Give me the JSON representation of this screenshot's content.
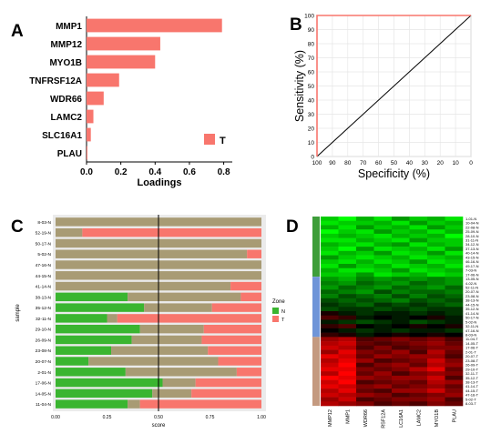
{
  "panels": {
    "A": "A",
    "B": "B",
    "C": "C",
    "D": "D"
  },
  "chart_data": [
    {
      "panel": "A",
      "type": "bar",
      "orientation": "horizontal",
      "categories": [
        "MMP1",
        "MMP12",
        "MYO1B",
        "TNFRSF12A",
        "WDR66",
        "LAMC2",
        "SLC16A1",
        "PLAU"
      ],
      "series": [
        {
          "name": "T",
          "values": [
            0.79,
            0.43,
            0.4,
            0.19,
            0.1,
            0.04,
            0.025,
            0.005
          ],
          "color": "#f8766d"
        }
      ],
      "xlabel": "Loadings",
      "xticks": [
        "0.0",
        "0.2",
        "0.4",
        "0.6",
        "0.8"
      ],
      "xlim": [
        0,
        0.85
      ],
      "legend_position": "bottom-right",
      "grid": false
    },
    {
      "panel": "B",
      "type": "line",
      "xlabel": "Specificity (%)",
      "ylabel": "Sensitivity (%)",
      "xticks": [
        "100",
        "90",
        "80",
        "70",
        "60",
        "50",
        "40",
        "30",
        "20",
        "10",
        "0"
      ],
      "yticks": [
        "0",
        "10",
        "20",
        "30",
        "40",
        "50",
        "60",
        "70",
        "80",
        "90",
        "100"
      ],
      "series": [
        {
          "role": "diagonal",
          "x": [
            100,
            0
          ],
          "y": [
            0,
            100
          ],
          "color": "#000000"
        },
        {
          "role": "roc",
          "x": [
            100,
            100,
            0
          ],
          "y": [
            0,
            100,
            100
          ],
          "color": "#f8766d"
        }
      ],
      "grid": true
    },
    {
      "panel": "C",
      "type": "bar",
      "orientation": "horizontal",
      "stacked": true,
      "ylabel": "sample",
      "xlabel": "score",
      "xticks": [
        "0.00",
        "0.25",
        "0.50",
        "0.75",
        "1.00"
      ],
      "xlim": [
        0,
        1
      ],
      "vline": 0.5,
      "legend_title": "Zone",
      "legend_entries": [
        {
          "label": "N",
          "color": "#3ab530"
        },
        {
          "label": "T",
          "color": "#f8766d"
        }
      ],
      "categories": [
        "8-03-N",
        "52-19-N",
        "50-17-N",
        "5-02-N",
        "47-16-N",
        "44-15-N",
        "41-14-N",
        "38-13-N",
        "35-12-N",
        "32-11-N",
        "29-10-N",
        "26-09-N",
        "23-08-N",
        "20-07-N",
        "2-01-N",
        "17-06-N",
        "14-05-N",
        "11-04-N"
      ],
      "segments": [
        [
          0.0,
          1.0,
          0.0
        ],
        [
          0.0,
          0.13,
          0.87
        ],
        [
          0.0,
          1.0,
          0.0
        ],
        [
          0.0,
          0.93,
          0.07
        ],
        [
          0.0,
          1.0,
          0.0
        ],
        [
          0.0,
          1.0,
          0.0
        ],
        [
          0.0,
          0.85,
          0.15
        ],
        [
          0.35,
          0.55,
          0.1
        ],
        [
          0.43,
          0.33,
          0.24
        ],
        [
          0.25,
          0.05,
          0.7
        ],
        [
          0.41,
          0.31,
          0.28
        ],
        [
          0.37,
          0.34,
          0.29
        ],
        [
          0.27,
          0.47,
          0.26
        ],
        [
          0.16,
          0.63,
          0.21
        ],
        [
          0.34,
          0.54,
          0.12
        ],
        [
          0.52,
          0.16,
          0.32
        ],
        [
          0.47,
          0.19,
          0.34
        ],
        [
          0.35,
          0.06,
          0.59
        ]
      ],
      "segment_colors": [
        "#3ab530",
        "#a89b74",
        "#f8766d"
      ]
    },
    {
      "panel": "D",
      "type": "heatmap",
      "columns": [
        "MMP12",
        "MMP1",
        "WDR66",
        "RSF12A",
        "LC16A1",
        "LAMC2",
        "MYO1B",
        "PLAU"
      ],
      "rows": [
        "1-01-N",
        "10-04-N",
        "22-08-N",
        "25-09-N",
        "28-10-N",
        "31-11-N",
        "34-12-N",
        "37-13-N",
        "40-14-N",
        "43-15-N",
        "46-16-N",
        "49-17-N",
        "7-03-N",
        "17-06-N",
        "13-05-N",
        "4-02-N",
        "52-11-N",
        "20-07-N",
        "23-08-N",
        "38-13-N",
        "44-15-N",
        "35-12-N",
        "41-14-N",
        "50-17-N",
        "5-02-N",
        "32-11-N",
        "47-16-N",
        "8-03-N",
        "11-04-T",
        "14-05-T",
        "17-06-T",
        "2-01-T",
        "20-07-T",
        "23-08-T",
        "26-09-T",
        "29-10-T",
        "32-11-T",
        "35-12-T",
        "38-13-T",
        "41-14-T",
        "44-15-T",
        "47-16-T",
        "5-02-T",
        "8-03-T"
      ],
      "row_groups": [
        {
          "rows": 14,
          "color": "#3e9e3a"
        },
        {
          "rows": 14,
          "color": "#6f95d8"
        },
        {
          "rows": 16,
          "color": "#c49a80"
        }
      ],
      "row_label_colors": {
        "N": "#1e8f3a",
        "T": "#d43a3a"
      },
      "color_scale": {
        "low": "#00ff00",
        "mid": "#000000",
        "high": "#ff0000"
      },
      "values": [
        [
          -0.8,
          -1.0,
          -0.7,
          -0.9,
          -0.6,
          -0.8,
          -0.7,
          -0.9
        ],
        [
          -0.9,
          -0.8,
          -0.8,
          -0.7,
          -0.9,
          -0.6,
          -0.8,
          -0.7
        ],
        [
          -0.7,
          -0.9,
          -0.6,
          -0.8,
          -0.7,
          -0.9,
          -0.6,
          -0.8
        ],
        [
          -1.0,
          -0.8,
          -0.9,
          -0.6,
          -0.8,
          -0.7,
          -0.9,
          -0.7
        ],
        [
          -0.8,
          -0.7,
          -0.8,
          -0.9,
          -0.7,
          -0.8,
          -0.7,
          -1.0
        ],
        [
          -0.9,
          -0.9,
          -0.7,
          -0.8,
          -0.9,
          -0.6,
          -0.8,
          -0.8
        ],
        [
          -0.7,
          -0.8,
          -0.9,
          -0.7,
          -0.6,
          -0.9,
          -0.7,
          -0.8
        ],
        [
          -0.8,
          -1.0,
          -0.6,
          -0.9,
          -0.8,
          -0.7,
          -0.9,
          -0.6
        ],
        [
          -0.9,
          -0.7,
          -0.8,
          -0.6,
          -0.9,
          -0.8,
          -0.6,
          -0.9
        ],
        [
          -0.6,
          -0.8,
          -0.9,
          -0.8,
          -0.7,
          -0.9,
          -0.8,
          -0.7
        ],
        [
          -0.8,
          -0.9,
          -0.7,
          -0.9,
          -0.8,
          -0.6,
          -0.9,
          -0.8
        ],
        [
          -0.9,
          -0.6,
          -0.8,
          -0.7,
          -0.9,
          -0.8,
          -0.7,
          -0.9
        ],
        [
          -0.7,
          -0.9,
          -0.9,
          -0.8,
          -0.6,
          -0.9,
          -0.8,
          -0.7
        ],
        [
          -0.8,
          -0.8,
          -0.6,
          -0.9,
          -0.8,
          -0.7,
          -0.9,
          -0.8
        ],
        [
          -0.6,
          -0.7,
          -0.5,
          -0.6,
          -0.5,
          -0.6,
          -0.5,
          -0.6
        ],
        [
          -0.5,
          -0.6,
          -0.4,
          -0.5,
          -0.6,
          -0.4,
          -0.5,
          -0.6
        ],
        [
          -0.6,
          -0.4,
          -0.5,
          -0.6,
          -0.4,
          -0.5,
          -0.6,
          -0.4
        ],
        [
          -0.4,
          -0.5,
          -0.6,
          -0.3,
          -0.5,
          -0.4,
          -0.4,
          -0.5
        ],
        [
          -0.5,
          -0.3,
          -0.4,
          -0.5,
          -0.3,
          -0.5,
          -0.3,
          -0.4
        ],
        [
          -0.3,
          -0.4,
          -0.3,
          -0.4,
          -0.5,
          -0.3,
          -0.4,
          -0.3
        ],
        [
          -0.2,
          -0.3,
          -0.4,
          -0.2,
          -0.3,
          -0.2,
          -0.3,
          -0.4
        ],
        [
          -0.3,
          -0.2,
          -0.2,
          -0.3,
          -0.2,
          -0.3,
          -0.2,
          -0.2
        ],
        [
          0.1,
          -0.1,
          -0.2,
          -0.1,
          -0.1,
          -0.2,
          -0.1,
          -0.2
        ],
        [
          0.3,
          0.2,
          -0.1,
          0.0,
          -0.1,
          0.0,
          0.1,
          -0.1
        ],
        [
          -0.1,
          -0.2,
          -0.3,
          -0.2,
          -0.1,
          -0.3,
          -0.2,
          -0.1
        ],
        [
          0.2,
          0.3,
          0.0,
          -0.1,
          0.0,
          0.1,
          0.0,
          0.1
        ],
        [
          0.0,
          -0.1,
          -0.2,
          -0.1,
          -0.2,
          -0.1,
          -0.1,
          -0.2
        ],
        [
          0.2,
          0.1,
          -0.1,
          0.0,
          0.1,
          0.0,
          0.1,
          0.0
        ],
        [
          0.6,
          0.7,
          0.3,
          0.4,
          0.5,
          0.4,
          0.5,
          0.3
        ],
        [
          0.7,
          0.8,
          0.4,
          0.3,
          0.4,
          0.5,
          0.6,
          0.4
        ],
        [
          0.8,
          0.7,
          0.3,
          0.5,
          0.3,
          0.4,
          0.5,
          0.5
        ],
        [
          0.6,
          0.9,
          0.5,
          0.4,
          0.6,
          0.3,
          0.7,
          0.4
        ],
        [
          0.9,
          0.8,
          0.4,
          0.6,
          0.5,
          0.6,
          0.6,
          0.3
        ],
        [
          0.7,
          0.9,
          0.6,
          0.3,
          0.4,
          0.5,
          0.8,
          0.5
        ],
        [
          0.8,
          1.0,
          0.3,
          0.5,
          0.6,
          0.4,
          0.7,
          0.6
        ],
        [
          0.9,
          0.9,
          0.5,
          0.4,
          0.5,
          0.7,
          0.9,
          0.4
        ],
        [
          0.7,
          1.0,
          0.4,
          0.6,
          0.3,
          0.5,
          0.6,
          0.5
        ],
        [
          1.0,
          0.9,
          0.6,
          0.5,
          0.6,
          0.6,
          0.8,
          0.3
        ],
        [
          0.8,
          1.0,
          0.3,
          0.4,
          0.5,
          0.4,
          0.7,
          0.6
        ],
        [
          0.9,
          0.8,
          0.5,
          0.6,
          0.4,
          0.5,
          0.6,
          0.4
        ],
        [
          0.7,
          0.9,
          0.4,
          0.3,
          0.6,
          0.6,
          0.8,
          0.5
        ],
        [
          0.8,
          0.7,
          0.6,
          0.5,
          0.3,
          0.4,
          0.5,
          0.6
        ],
        [
          0.6,
          0.8,
          0.3,
          0.4,
          0.5,
          0.5,
          0.6,
          0.3
        ],
        [
          0.7,
          0.6,
          0.5,
          0.3,
          0.4,
          0.3,
          0.5,
          0.4
        ]
      ]
    }
  ]
}
